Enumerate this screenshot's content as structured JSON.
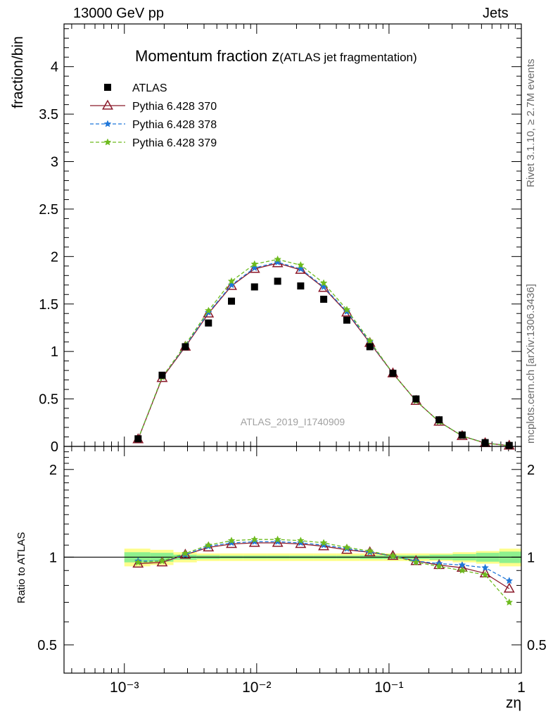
{
  "header": {
    "left": "13000 GeV pp",
    "right": "Jets"
  },
  "side_labels": {
    "rivet": "Rivet 3.1.10, ≥ 2.7M events",
    "mcplots": "mcplots.cern.ch [arXiv:1306.3436]"
  },
  "chart_data": [
    {
      "type": "scatter",
      "title_main": "Momentum fraction z",
      "title_sub": "(ATLAS jet fragmentation)",
      "ylabel": "fraction/bin",
      "xlabel": "zη",
      "watermark": "ATLAS_2019_I1740909",
      "x_scale": "log",
      "xlim": [
        0.00035,
        1.0
      ],
      "ylim": [
        0,
        4.45
      ],
      "y_ticks": [
        "0",
        "0.5",
        "1",
        "1.5",
        "2",
        "2.5",
        "3",
        "3.5",
        "4"
      ],
      "x_ticks": [
        "10⁻³",
        "10⁻²",
        "10⁻¹",
        "1"
      ],
      "legend_position": "top-left",
      "x": [
        0.00127,
        0.00193,
        0.00289,
        0.00432,
        0.00645,
        0.00963,
        0.0144,
        0.0215,
        0.0321,
        0.048,
        0.0717,
        0.107,
        0.16,
        0.239,
        0.357,
        0.533,
        0.81
      ],
      "series": [
        {
          "name": "ATLAS",
          "color": "#000000",
          "marker": "square",
          "values": [
            0.08,
            0.75,
            1.05,
            1.3,
            1.53,
            1.68,
            1.74,
            1.69,
            1.55,
            1.33,
            1.05,
            0.77,
            0.5,
            0.28,
            0.12,
            0.04,
            0.01
          ]
        },
        {
          "name": "Pythia 6.428 370",
          "color": "#8b1a2b",
          "marker": "triangle",
          "dash": "",
          "values": [
            0.076,
            0.72,
            1.05,
            1.4,
            1.69,
            1.87,
            1.93,
            1.86,
            1.67,
            1.41,
            1.09,
            0.77,
            0.48,
            0.26,
            0.11,
            0.035,
            0.008
          ]
        },
        {
          "name": "Pythia 6.428 378",
          "color": "#1f77d9",
          "marker": "star",
          "dash": "5,3",
          "values": [
            0.077,
            0.73,
            1.06,
            1.41,
            1.7,
            1.88,
            1.94,
            1.87,
            1.68,
            1.42,
            1.1,
            0.77,
            0.48,
            0.26,
            0.11,
            0.036,
            0.0085
          ]
        },
        {
          "name": "Pythia 6.428 379",
          "color": "#6dbb1e",
          "marker": "star",
          "dash": "5,3",
          "values": [
            0.077,
            0.73,
            1.07,
            1.43,
            1.74,
            1.92,
            1.97,
            1.91,
            1.72,
            1.44,
            1.11,
            0.77,
            0.48,
            0.26,
            0.11,
            0.035,
            0.007
          ]
        }
      ]
    },
    {
      "type": "line",
      "ylabel": "Ratio to ATLAS",
      "y_scale": "log",
      "ylim": [
        0.4,
        2.4
      ],
      "y_ticks": [
        "0.5",
        "1",
        "2"
      ],
      "band_edges": [
        0.001,
        0.00157,
        0.00235,
        0.00353,
        0.00529,
        0.00793,
        0.0119,
        0.0178,
        0.0267,
        0.04,
        0.06,
        0.09,
        0.135,
        0.202,
        0.303,
        0.455,
        0.682,
        1.0
      ],
      "band_yellow": [
        0.07,
        0.06,
        0.04,
        0.03,
        0.03,
        0.03,
        0.03,
        0.03,
        0.03,
        0.03,
        0.03,
        0.03,
        0.03,
        0.03,
        0.04,
        0.05,
        0.07
      ],
      "band_green": [
        0.04,
        0.035,
        0.02,
        0.015,
        0.012,
        0.012,
        0.012,
        0.012,
        0.012,
        0.012,
        0.015,
        0.015,
        0.015,
        0.02,
        0.025,
        0.035,
        0.045
      ],
      "series": [
        {
          "name": "Pythia 6.428 370",
          "color": "#8b1a2b",
          "marker": "triangle",
          "dash": "",
          "values": [
            0.95,
            0.96,
            1.02,
            1.08,
            1.11,
            1.12,
            1.12,
            1.11,
            1.09,
            1.06,
            1.04,
            1.01,
            0.97,
            0.94,
            0.92,
            0.88,
            0.78
          ]
        },
        {
          "name": "Pythia 6.428 378",
          "color": "#1f77d9",
          "marker": "star",
          "dash": "5,3",
          "values": [
            0.97,
            0.97,
            1.02,
            1.09,
            1.12,
            1.13,
            1.13,
            1.12,
            1.1,
            1.07,
            1.04,
            1.01,
            0.97,
            0.95,
            0.94,
            0.92,
            0.83
          ]
        },
        {
          "name": "Pythia 6.428 379",
          "color": "#6dbb1e",
          "marker": "star",
          "dash": "5,3",
          "values": [
            0.96,
            0.97,
            1.03,
            1.1,
            1.14,
            1.15,
            1.15,
            1.14,
            1.12,
            1.08,
            1.05,
            1.01,
            0.96,
            0.93,
            0.9,
            0.87,
            0.7
          ]
        }
      ]
    }
  ]
}
